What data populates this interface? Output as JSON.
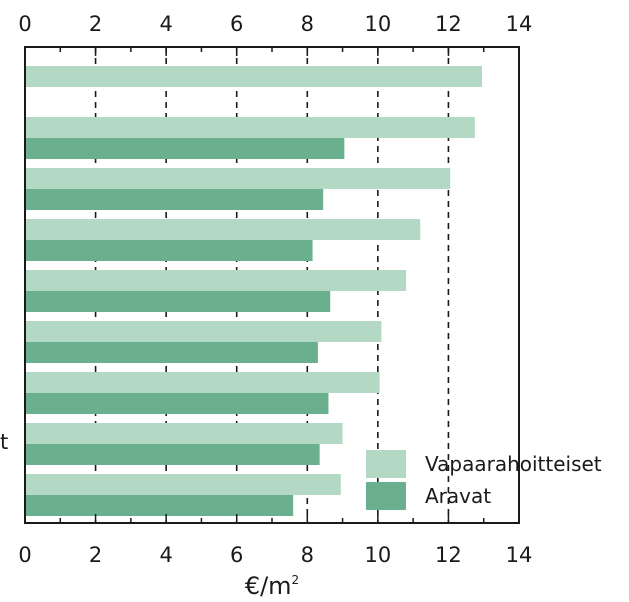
{
  "chart_data": {
    "type": "bar",
    "orientation": "horizontal",
    "categories": [
      "",
      "",
      "",
      "",
      "",
      "",
      "",
      "",
      ""
    ],
    "series": [
      {
        "name": "Vapaarahoitteiset",
        "color": "#b3d9c5",
        "values": [
          12.95,
          12.75,
          12.05,
          11.2,
          10.8,
          10.1,
          10.05,
          9.0,
          8.95
        ]
      },
      {
        "name": "Aravat",
        "color": "#6ab08e",
        "values": [
          null,
          9.05,
          8.45,
          8.15,
          8.65,
          8.3,
          8.6,
          8.35,
          7.6
        ]
      }
    ],
    "xlim": [
      0,
      14
    ],
    "xticks": [
      "0",
      "2",
      "4",
      "6",
      "8",
      "10",
      "12",
      "14"
    ],
    "xlabel": "€/m",
    "xlabel_superscript": "2",
    "grid": "vertical-dashed",
    "legend": "bottom-right",
    "clipped_left_label": "t"
  }
}
